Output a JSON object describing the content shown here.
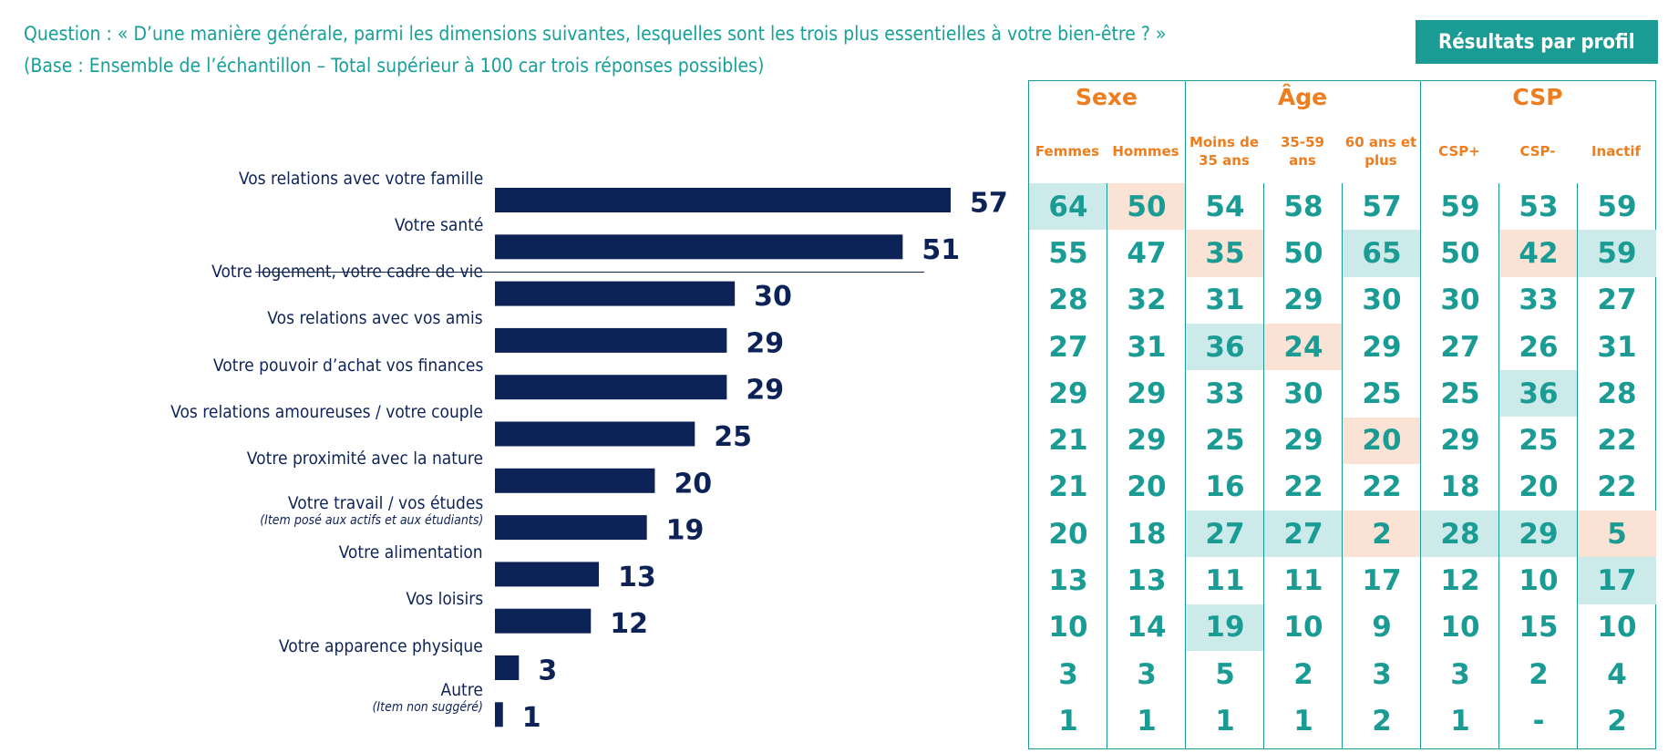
{
  "question": {
    "line1": "Question : « D’une manière générale, parmi les dimensions suivantes, lesquelles sont les trois plus essentielles à votre bien-être ? »",
    "line2": "(Base : Ensemble de l’échantillon – Total supérieur à 100 car trois réponses possibles)"
  },
  "profile_button": "Résultats par profil",
  "colors": {
    "bar": "#0d2357",
    "teal": "#1a9b94",
    "orange": "#ee7d1e",
    "highlight_high": "#cdeaea",
    "highlight_low": "#fae2d4"
  },
  "chart_data": {
    "type": "bar",
    "orientation": "horizontal",
    "categories": [
      "Vos relations avec votre famille",
      "Votre santé",
      "Votre logement, votre cadre de vie",
      "Vos relations avec vos amis",
      "Votre pouvoir d’achat vos finances",
      "Vos relations amoureuses / votre couple",
      "Votre proximité avec la nature",
      "Votre travail / vos études",
      "Votre alimentation",
      "Vos loisirs",
      "Votre apparence physique",
      "Autre"
    ],
    "sublabels": [
      "",
      "",
      "",
      "",
      "",
      "",
      "",
      "(Item posé aux actifs et aux étudiants)",
      "",
      "",
      "",
      "(Item non suggéré)"
    ],
    "values": [
      57,
      51,
      30,
      29,
      29,
      25,
      20,
      19,
      13,
      12,
      3,
      1
    ],
    "xlim": [
      0,
      57
    ]
  },
  "table": {
    "groups": [
      {
        "label": "Sexe",
        "span": 2
      },
      {
        "label": "Âge",
        "span": 3
      },
      {
        "label": "CSP",
        "span": 3
      }
    ],
    "columns": [
      [
        "Femmes"
      ],
      [
        "Hommes"
      ],
      [
        "Moins de",
        "35 ans"
      ],
      [
        "35-59",
        "ans"
      ],
      [
        "60 ans et",
        "plus"
      ],
      [
        "CSP+"
      ],
      [
        "CSP-"
      ],
      [
        "Inactif"
      ]
    ],
    "rows": [
      [
        "64",
        "50",
        "54",
        "58",
        "57",
        "59",
        "53",
        "59"
      ],
      [
        "55",
        "47",
        "35",
        "50",
        "65",
        "50",
        "42",
        "59"
      ],
      [
        "28",
        "32",
        "31",
        "29",
        "30",
        "30",
        "33",
        "27"
      ],
      [
        "27",
        "31",
        "36",
        "24",
        "29",
        "27",
        "26",
        "31"
      ],
      [
        "29",
        "29",
        "33",
        "30",
        "25",
        "25",
        "36",
        "28"
      ],
      [
        "21",
        "29",
        "25",
        "29",
        "20",
        "29",
        "25",
        "22"
      ],
      [
        "21",
        "20",
        "16",
        "22",
        "22",
        "18",
        "20",
        "22"
      ],
      [
        "20",
        "18",
        "27",
        "27",
        "2",
        "28",
        "29",
        "5"
      ],
      [
        "13",
        "13",
        "11",
        "11",
        "17",
        "12",
        "10",
        "17"
      ],
      [
        "10",
        "14",
        "19",
        "10",
        "9",
        "10",
        "15",
        "10"
      ],
      [
        "3",
        "3",
        "5",
        "2",
        "3",
        "3",
        "2",
        "4"
      ],
      [
        "1",
        "1",
        "1",
        "1",
        "2",
        "1",
        "-",
        "2"
      ]
    ],
    "highlights": [
      [
        "hi",
        "lo",
        "",
        "",
        "",
        "",
        "",
        ""
      ],
      [
        "",
        "",
        "lo",
        "",
        "hi",
        "",
        "lo",
        "hi"
      ],
      [
        "",
        "",
        "",
        "",
        "",
        "",
        "",
        ""
      ],
      [
        "",
        "",
        "hi",
        "lo",
        "",
        "",
        "",
        ""
      ],
      [
        "",
        "",
        "",
        "",
        "",
        "",
        "hi",
        ""
      ],
      [
        "",
        "",
        "",
        "",
        "lo",
        "",
        "",
        ""
      ],
      [
        "",
        "",
        "",
        "",
        "",
        "",
        "",
        ""
      ],
      [
        "",
        "",
        "hi",
        "hi",
        "lo",
        "hi",
        "hi",
        "lo"
      ],
      [
        "",
        "",
        "",
        "",
        "",
        "",
        "",
        "hi"
      ],
      [
        "",
        "",
        "hi",
        "",
        "",
        "",
        "",
        ""
      ],
      [
        "",
        "",
        "",
        "",
        "",
        "",
        "",
        ""
      ],
      [
        "",
        "",
        "",
        "",
        "",
        "",
        "",
        ""
      ]
    ]
  }
}
